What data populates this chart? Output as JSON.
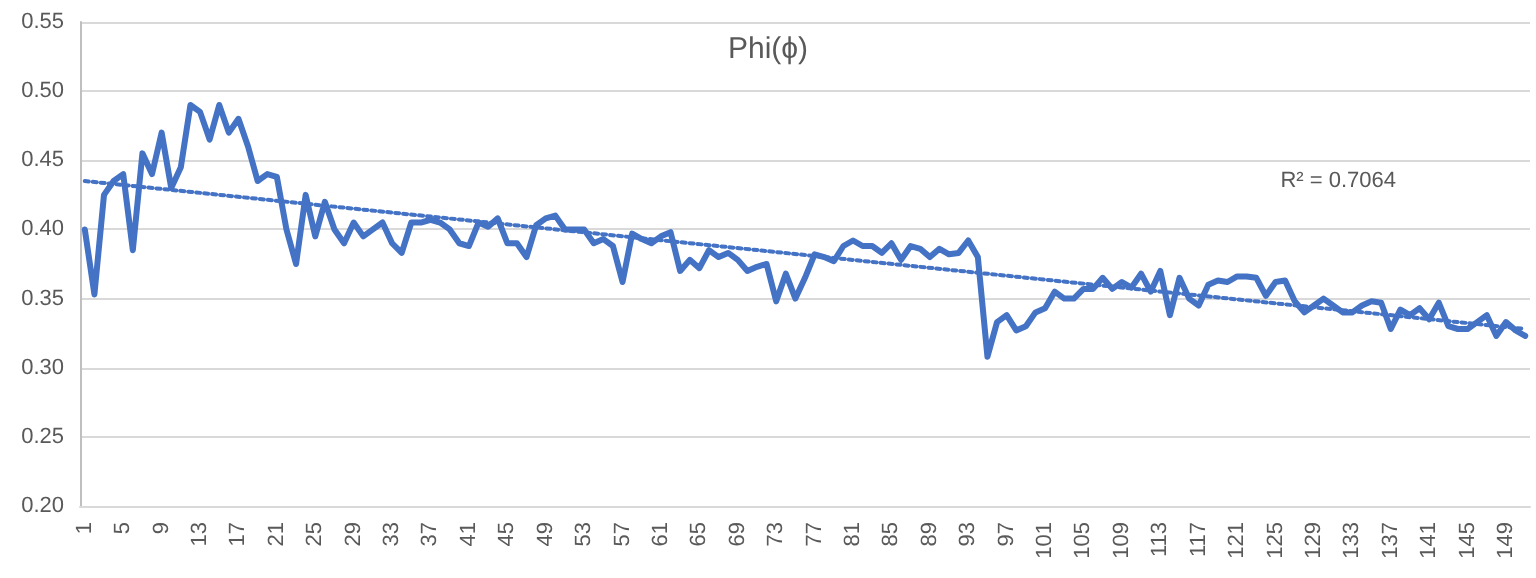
{
  "chart_data": {
    "type": "line",
    "title": "Phi(ϕ)",
    "x": [
      1,
      2,
      3,
      4,
      5,
      6,
      7,
      8,
      9,
      10,
      11,
      12,
      13,
      14,
      15,
      16,
      17,
      18,
      19,
      20,
      21,
      22,
      23,
      24,
      25,
      26,
      27,
      28,
      29,
      30,
      31,
      32,
      33,
      34,
      35,
      36,
      37,
      38,
      39,
      40,
      41,
      42,
      43,
      44,
      45,
      46,
      47,
      48,
      49,
      50,
      51,
      52,
      53,
      54,
      55,
      56,
      57,
      58,
      59,
      60,
      61,
      62,
      63,
      64,
      65,
      66,
      67,
      68,
      69,
      70,
      71,
      72,
      73,
      74,
      75,
      76,
      77,
      78,
      79,
      80,
      81,
      82,
      83,
      84,
      85,
      86,
      87,
      88,
      89,
      90,
      91,
      92,
      93,
      94,
      95,
      96,
      97,
      98,
      99,
      100,
      101,
      102,
      103,
      104,
      105,
      106,
      107,
      108,
      109,
      110,
      111,
      112,
      113,
      114,
      115,
      116,
      117,
      118,
      119,
      120,
      121,
      122,
      123,
      124,
      125,
      126,
      127,
      128,
      129,
      130,
      131,
      132,
      133,
      134,
      135,
      136,
      137,
      138,
      139,
      140,
      141,
      142,
      143,
      144,
      145,
      146,
      147,
      148,
      149,
      150,
      151
    ],
    "series": [
      {
        "color": "#4472c4",
        "line_style": "solid",
        "values": [
          0.4,
          0.353,
          0.425,
          0.435,
          0.44,
          0.385,
          0.455,
          0.44,
          0.47,
          0.43,
          0.445,
          0.49,
          0.485,
          0.465,
          0.49,
          0.47,
          0.48,
          0.46,
          0.435,
          0.44,
          0.438,
          0.4,
          0.375,
          0.425,
          0.395,
          0.42,
          0.4,
          0.39,
          0.405,
          0.395,
          0.4,
          0.405,
          0.39,
          0.383,
          0.405,
          0.405,
          0.407,
          0.405,
          0.4,
          0.39,
          0.388,
          0.405,
          0.402,
          0.408,
          0.39,
          0.39,
          0.38,
          0.403,
          0.408,
          0.41,
          0.4,
          0.4,
          0.4,
          0.39,
          0.393,
          0.388,
          0.362,
          0.397,
          0.393,
          0.39,
          0.395,
          0.398,
          0.37,
          0.378,
          0.372,
          0.385,
          0.38,
          0.383,
          0.378,
          0.37,
          0.373,
          0.375,
          0.348,
          0.368,
          0.35,
          0.365,
          0.382,
          0.38,
          0.377,
          0.388,
          0.392,
          0.388,
          0.388,
          0.383,
          0.39,
          0.378,
          0.388,
          0.386,
          0.38,
          0.386,
          0.382,
          0.383,
          0.392,
          0.38,
          0.308,
          0.333,
          0.338,
          0.327,
          0.33,
          0.34,
          0.343,
          0.355,
          0.35,
          0.35,
          0.357,
          0.357,
          0.365,
          0.357,
          0.362,
          0.358,
          0.368,
          0.355,
          0.37,
          0.338,
          0.365,
          0.35,
          0.345,
          0.36,
          0.363,
          0.362,
          0.366,
          0.366,
          0.365,
          0.352,
          0.362,
          0.363,
          0.348,
          0.34,
          0.345,
          0.35,
          0.345,
          0.34,
          0.34,
          0.345,
          0.348,
          0.347,
          0.328,
          0.342,
          0.338,
          0.343,
          0.335,
          0.347,
          0.33,
          0.328,
          0.328,
          0.333,
          0.338,
          0.323,
          0.333,
          0.327,
          0.323
        ]
      },
      {
        "color": "#4472c4",
        "line_style": "dotted",
        "x": [
          1,
          151
        ],
        "values": [
          0.435,
          0.328
        ]
      }
    ],
    "xlim": [
      0.5,
      151.5
    ],
    "xticks": [
      1,
      5,
      9,
      13,
      17,
      21,
      25,
      29,
      33,
      37,
      41,
      45,
      49,
      53,
      57,
      61,
      65,
      69,
      73,
      77,
      81,
      85,
      89,
      93,
      97,
      101,
      105,
      109,
      113,
      117,
      121,
      125,
      129,
      133,
      137,
      141,
      145,
      149
    ],
    "ylim": [
      0.2,
      0.55
    ],
    "yticks": [
      {
        "value": 0.2,
        "label": "0.20"
      },
      {
        "value": 0.25,
        "label": "0.25"
      },
      {
        "value": 0.3,
        "label": "0.30"
      },
      {
        "value": 0.35,
        "label": "0.35"
      },
      {
        "value": 0.4,
        "label": "0.40"
      },
      {
        "value": 0.45,
        "label": "0.45"
      },
      {
        "value": 0.5,
        "label": "0.50"
      },
      {
        "value": 0.55,
        "label": "0.55"
      }
    ],
    "grid": "y",
    "marker": "none",
    "annotations": [
      "R² = 0.7064"
    ]
  }
}
